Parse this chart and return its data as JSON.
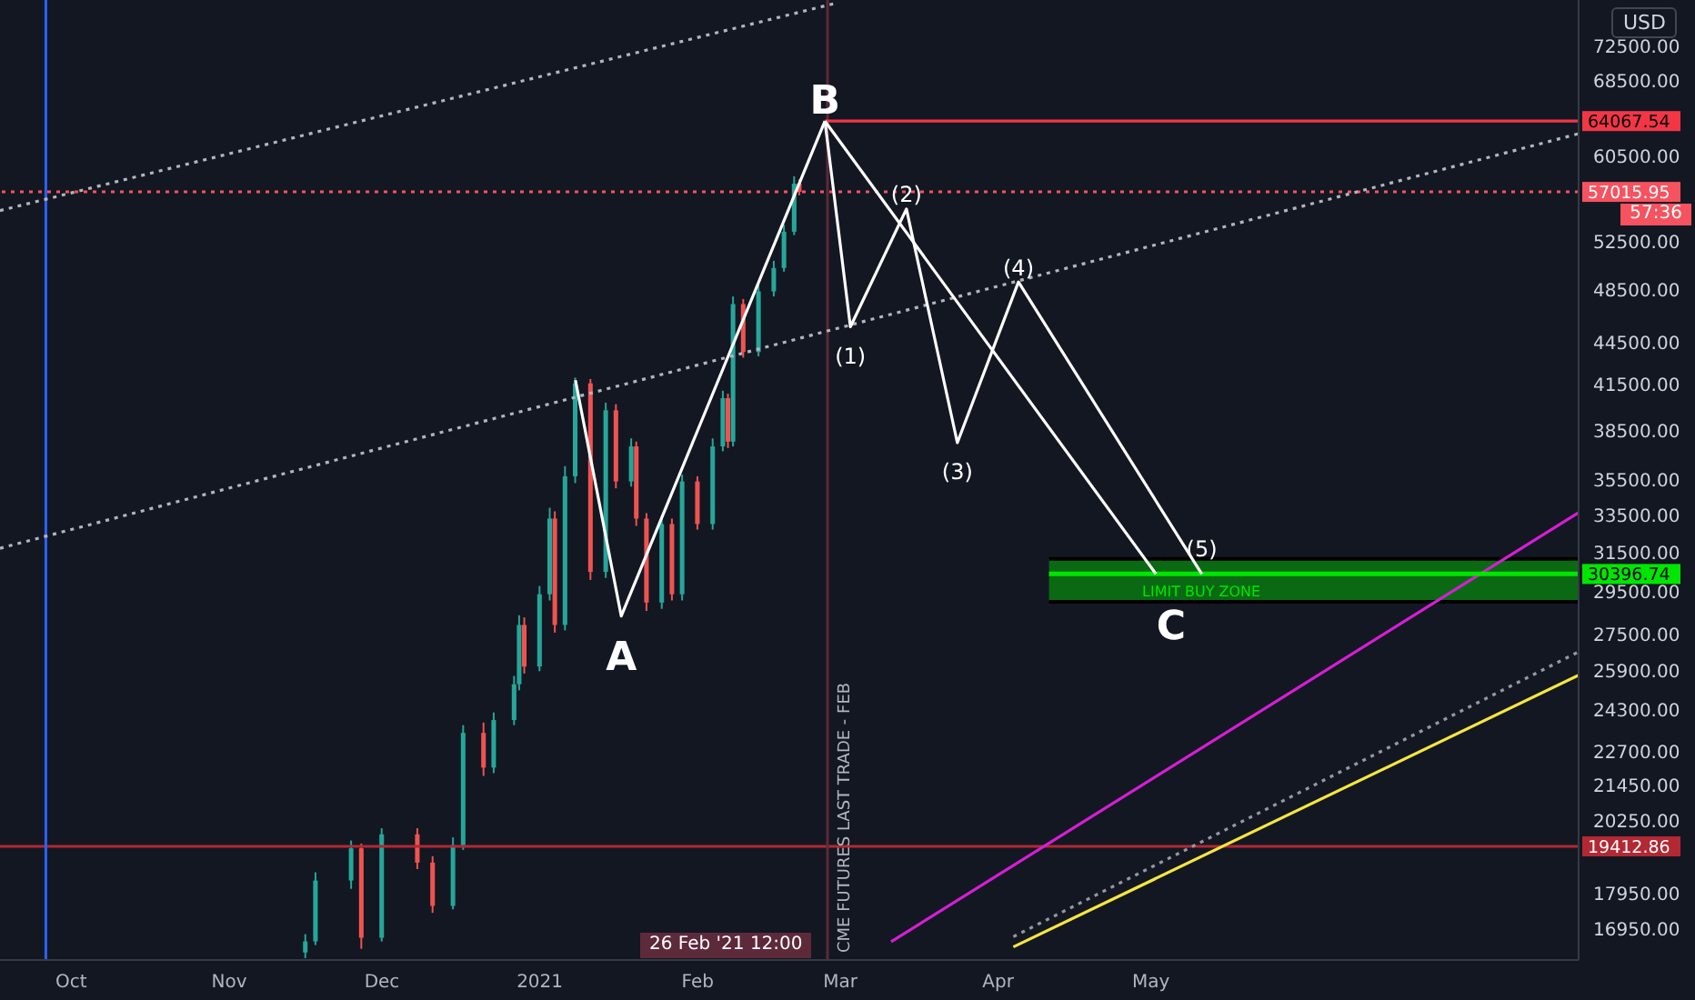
{
  "chart_data": {
    "type": "candlestick",
    "ylabel": "USD",
    "log": true,
    "marker": "none",
    "xlim": [
      "2020-09-17",
      "2021-07-24"
    ],
    "xticks": [
      {
        "value": "2020-10",
        "label": "Oct"
      },
      {
        "value": "2020-11",
        "label": "Nov"
      },
      {
        "value": "2020-12",
        "label": "Dec"
      },
      {
        "value": "2021-01",
        "label": "2021"
      },
      {
        "value": "2021-02",
        "label": "Feb"
      },
      {
        "value": "2021-03",
        "label": "Mar"
      },
      {
        "value": "2021-04",
        "label": "Apr"
      },
      {
        "value": "2021-05",
        "label": "May"
      }
    ],
    "ylim": [
      16100,
      78200
    ],
    "yticks": [
      {
        "value": 16950,
        "label": "16950.00"
      },
      {
        "value": 17950,
        "label": "17950.00"
      },
      {
        "value": 20250,
        "label": "20250.00"
      },
      {
        "value": 21450,
        "label": "21450.00"
      },
      {
        "value": 22700,
        "label": "22700.00"
      },
      {
        "value": 24300,
        "label": "24300.00"
      },
      {
        "value": 25900,
        "label": "25900.00"
      },
      {
        "value": 27500,
        "label": "27500.00"
      },
      {
        "value": 29500,
        "label": "29500.00"
      },
      {
        "value": 31500,
        "label": "31500.00"
      },
      {
        "value": 33500,
        "label": "33500.00"
      },
      {
        "value": 35500,
        "label": "35500.00"
      },
      {
        "value": 38500,
        "label": "38500.00"
      },
      {
        "value": 41500,
        "label": "41500.00"
      },
      {
        "value": 44500,
        "label": "44500.00"
      },
      {
        "value": 48500,
        "label": "48500.00"
      },
      {
        "value": 52500,
        "label": "52500.00"
      },
      {
        "value": 60500,
        "label": "60500.00"
      },
      {
        "value": 68500,
        "label": "68500.00"
      },
      {
        "value": 72500,
        "label": "72500.00"
      }
    ],
    "series": [
      {
        "x": [
          "2020-11-16",
          "2020-11-18",
          "2020-11-25",
          "2020-11-27",
          "2020-12-01",
          "2020-12-08",
          "2020-12-11",
          "2020-12-15",
          "2020-12-17",
          "2020-12-21",
          "2020-12-23",
          "2020-12-27",
          "2020-12-28",
          "2020-12-29",
          "2021-01-01",
          "2021-01-03",
          "2021-01-04",
          "2021-01-06",
          "2021-01-08",
          "2021-01-11",
          "2021-01-14",
          "2021-01-16",
          "2021-01-19",
          "2021-01-20",
          "2021-01-22",
          "2021-01-25",
          "2021-01-27",
          "2021-01-29",
          "2021-02-01",
          "2021-02-04",
          "2021-02-06",
          "2021-02-07",
          "2021-02-08",
          "2021-02-10",
          "2021-02-13",
          "2021-02-16",
          "2021-02-18",
          "2021-02-20",
          "2021-02-21"
        ],
        "ohlc": [
          [
            16300,
            16800,
            16150,
            16600
          ],
          [
            16600,
            18600,
            16500,
            18350
          ],
          [
            18350,
            19600,
            18100,
            19350
          ],
          [
            19350,
            19500,
            16400,
            16700
          ],
          [
            16700,
            20000,
            16600,
            19800
          ],
          [
            19800,
            20000,
            18700,
            18900
          ],
          [
            18900,
            19100,
            17400,
            17600
          ],
          [
            17600,
            19700,
            17500,
            19450
          ],
          [
            19450,
            23700,
            19300,
            23400
          ],
          [
            23400,
            23800,
            21800,
            22100
          ],
          [
            22100,
            24200,
            21900,
            23900
          ],
          [
            23900,
            25700,
            23700,
            25350
          ],
          [
            25350,
            28400,
            25100,
            27950
          ],
          [
            27950,
            28300,
            25800,
            26100
          ],
          [
            26100,
            29800,
            25900,
            29400
          ],
          [
            29400,
            33900,
            29100,
            33300
          ],
          [
            33300,
            33700,
            27600,
            27950
          ],
          [
            27950,
            36300,
            27700,
            35700
          ],
          [
            35700,
            42000,
            35300,
            41600
          ],
          [
            41600,
            41900,
            30100,
            30500
          ],
          [
            30500,
            40300,
            30200,
            39800
          ],
          [
            39800,
            40200,
            35000,
            35400
          ],
          [
            35400,
            38000,
            35100,
            37500
          ],
          [
            37500,
            37800,
            32900,
            33300
          ],
          [
            33300,
            33600,
            28600,
            29000
          ],
          [
            29000,
            33400,
            28700,
            33000
          ],
          [
            33000,
            33300,
            29100,
            29400
          ],
          [
            29400,
            35800,
            29100,
            35400
          ],
          [
            35400,
            35700,
            32700,
            33000
          ],
          [
            33000,
            38000,
            32700,
            37500
          ],
          [
            37500,
            41100,
            37200,
            40600
          ],
          [
            40600,
            40900,
            37400,
            37800
          ],
          [
            37800,
            48000,
            37500,
            47400
          ],
          [
            47400,
            47800,
            43400,
            43800
          ],
          [
            43800,
            49000,
            43500,
            48400
          ],
          [
            48400,
            50900,
            48000,
            50300
          ],
          [
            50300,
            54000,
            50000,
            53400
          ],
          [
            53400,
            58500,
            53100,
            57800
          ],
          [
            57800,
            58200,
            56700,
            57015.95
          ]
        ],
        "colors": [
          "#26a69a",
          "#26a69a",
          "#26a69a",
          "#ef5350",
          "#26a69a",
          "#ef5350",
          "#ef5350",
          "#26a69a",
          "#26a69a",
          "#ef5350",
          "#26a69a",
          "#26a69a",
          "#26a69a",
          "#ef5350",
          "#26a69a",
          "#26a69a",
          "#ef5350",
          "#26a69a",
          "#26a69a",
          "#ef5350",
          "#26a69a",
          "#ef5350",
          "#26a69a",
          "#ef5350",
          "#ef5350",
          "#26a69a",
          "#ef5350",
          "#26a69a",
          "#ef5350",
          "#26a69a",
          "#26a69a",
          "#ef5350",
          "#26a69a",
          "#ef5350",
          "#26a69a",
          "#26a69a",
          "#26a69a",
          "#26a69a",
          "#ef5350"
        ]
      },
      {
        "type": "line",
        "color": "#f5e642",
        "x": [
          "2021-04-04",
          "2021-07-24"
        ],
        "values": [
          16450,
          25730
        ]
      },
      {
        "type": "line",
        "color": "#d41fd4",
        "x": [
          "2021-03-11",
          "2021-07-24"
        ],
        "values": [
          16590,
          33630
        ]
      },
      {
        "type": "line",
        "color": "#9598a1",
        "line_style": "dotted",
        "x": [
          "2021-04-04",
          "2021-07-24"
        ],
        "values": [
          16730,
          26740
        ]
      },
      {
        "type": "line",
        "color": "#b2b5be",
        "line_style": "dotted",
        "x": [
          "2020-09-17",
          "2021-07-24"
        ],
        "values": [
          31710,
          62750
        ]
      },
      {
        "type": "line",
        "color": "#b2b5be",
        "line_style": "dotted",
        "x": [
          "2020-09-17",
          "2021-02-28"
        ],
        "values": [
          55290,
          77770
        ]
      },
      {
        "type": "line",
        "color": "#00e600",
        "x": [
          "2021-04-11",
          "2021-07-24"
        ],
        "values": [
          30396.74,
          30396.74
        ],
        "lower": [
          29040,
          29040
        ],
        "upper": [
          31160,
          31160
        ],
        "value_labels": [
          null,
          "30396.74"
        ]
      },
      {
        "type": "line",
        "color": "#f23645",
        "x": [
          "2021-02-26",
          "2021-07-24"
        ],
        "values": [
          64067.54,
          64067.54
        ],
        "value_labels": [
          null,
          "64067.54"
        ]
      },
      {
        "type": "line",
        "color": "#ffffff",
        "x": [
          "2021-01-08",
          "2021-01-17",
          "2021-02-26"
        ],
        "values": [
          41820,
          28360,
          64067.54
        ]
      },
      {
        "type": "line",
        "color": "#ffffff",
        "x": [
          "2021-02-26",
          "2021-03-03",
          "2021-03-14",
          "2021-03-24",
          "2021-04-05",
          "2021-05-11"
        ],
        "values": [
          64067.54,
          45660,
          55440,
          37730,
          49160,
          30396.74
        ]
      },
      {
        "type": "line",
        "color": "#ffffff",
        "x": [
          "2021-02-26",
          "2021-05-02"
        ],
        "values": [
          64067.54,
          30396.74
        ]
      }
    ],
    "ref_lines": [
      {
        "axis": "y",
        "value": 19412.86,
        "label": "19412.86",
        "color": "#b22833"
      },
      {
        "axis": "y",
        "value": 57015.95,
        "label": "57015.95",
        "color": "#f7525f",
        "line_style": "dotted"
      },
      {
        "axis": "x",
        "value": "2021-02-26T12:00",
        "label": "CME FUTURES LAST TRADE - FEB",
        "color": "#5d2a3a"
      },
      {
        "axis": "x",
        "value": "2020-09-26",
        "color": "#2962ff"
      }
    ],
    "annotations": [
      {
        "text": "A",
        "x": "2021-01-17",
        "y": 28360
      },
      {
        "text": "B",
        "x": "2021-02-26",
        "y": 64067.54
      },
      {
        "text": "C",
        "x": "2021-05-05",
        "y": 30396.74
      },
      {
        "text": "(1)",
        "x": "2021-03-03",
        "y": 45660
      },
      {
        "text": "(2)",
        "x": "2021-03-14",
        "y": 55440
      },
      {
        "text": "(3)",
        "x": "2021-03-24",
        "y": 37730
      },
      {
        "text": "(4)",
        "x": "2021-04-05",
        "y": 49160
      },
      {
        "text": "(5)",
        "x": "2021-05-11",
        "y": 30396.74
      },
      "LIMIT BUY ZONE",
      "26 Feb '21 12:00",
      "57:36"
    ]
  }
}
